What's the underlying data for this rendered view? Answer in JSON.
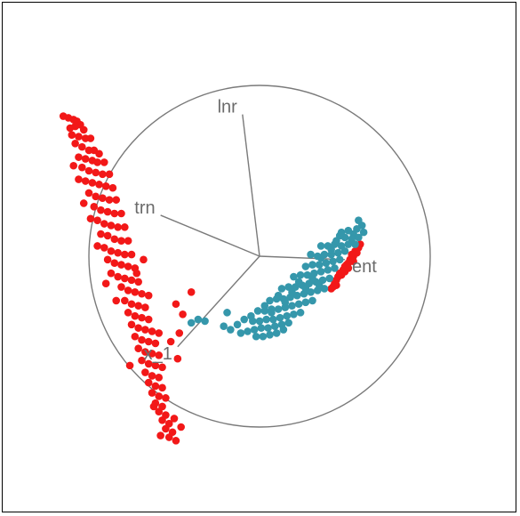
{
  "chart_data": {
    "type": "scatter",
    "projection": "tour-biplot",
    "title": "",
    "xlabel": "",
    "ylabel": "",
    "xlim": [
      -1.6,
      1.6
    ],
    "ylim": [
      -1.5,
      1.5
    ],
    "grid": false,
    "legend": "none",
    "guide_circle_radius": 1.0,
    "axes_vectors": [
      {
        "label": "lnr",
        "x": -0.1,
        "y": 0.83
      },
      {
        "label": "trn",
        "x": -0.58,
        "y": 0.24
      },
      {
        "label": "x_1",
        "x": -0.48,
        "y": -0.53
      },
      {
        "label": "ent",
        "x": 0.5,
        "y": -0.02
      }
    ],
    "series": [
      {
        "color": "#f21818",
        "points": [
          [
            -1.15,
            0.82
          ],
          [
            -1.12,
            0.81
          ],
          [
            -1.09,
            0.8
          ],
          [
            -1.07,
            0.79
          ],
          [
            -1.05,
            0.77
          ],
          [
            -1.08,
            0.76
          ],
          [
            -1.11,
            0.75
          ],
          [
            -1.03,
            0.74
          ],
          [
            -1.1,
            0.71
          ],
          [
            -1.06,
            0.7
          ],
          [
            -1.02,
            0.69
          ],
          [
            -0.99,
            0.69
          ],
          [
            -1.08,
            0.66
          ],
          [
            -1.04,
            0.64
          ],
          [
            -1.0,
            0.62
          ],
          [
            -0.97,
            0.62
          ],
          [
            -0.94,
            0.6
          ],
          [
            -1.06,
            0.58
          ],
          [
            -1.02,
            0.57
          ],
          [
            -0.98,
            0.56
          ],
          [
            -0.95,
            0.55
          ],
          [
            -0.91,
            0.55
          ],
          [
            -1.09,
            0.53
          ],
          [
            -1.04,
            0.52
          ],
          [
            -1.0,
            0.5
          ],
          [
            -0.96,
            0.49
          ],
          [
            -0.92,
            0.48
          ],
          [
            -0.88,
            0.48
          ],
          [
            -1.06,
            0.45
          ],
          [
            -1.02,
            0.44
          ],
          [
            -0.98,
            0.43
          ],
          [
            -0.94,
            0.42
          ],
          [
            -0.9,
            0.41
          ],
          [
            -0.86,
            0.4
          ],
          [
            -1.0,
            0.37
          ],
          [
            -0.96,
            0.35
          ],
          [
            -0.92,
            0.34
          ],
          [
            -0.88,
            0.33
          ],
          [
            -0.84,
            0.33
          ],
          [
            -1.03,
            0.31
          ],
          [
            -0.97,
            0.29
          ],
          [
            -0.93,
            0.27
          ],
          [
            -0.89,
            0.26
          ],
          [
            -0.85,
            0.25
          ],
          [
            -0.81,
            0.25
          ],
          [
            -0.99,
            0.22
          ],
          [
            -0.95,
            0.21
          ],
          [
            -0.91,
            0.19
          ],
          [
            -0.87,
            0.18
          ],
          [
            -0.83,
            0.17
          ],
          [
            -0.79,
            0.17
          ],
          [
            -0.93,
            0.13
          ],
          [
            -0.89,
            0.12
          ],
          [
            -0.85,
            0.1
          ],
          [
            -0.81,
            0.09
          ],
          [
            -0.77,
            0.09
          ],
          [
            -0.95,
            0.06
          ],
          [
            -0.91,
            0.05
          ],
          [
            -0.87,
            0.03
          ],
          [
            -0.83,
            0.02
          ],
          [
            -0.79,
            0.01
          ],
          [
            -0.75,
            0.01
          ],
          [
            -0.89,
            -0.02
          ],
          [
            -0.85,
            -0.04
          ],
          [
            -0.81,
            -0.05
          ],
          [
            -0.77,
            -0.06
          ],
          [
            -0.73,
            -0.07
          ],
          [
            -0.87,
            -0.1
          ],
          [
            -0.83,
            -0.12
          ],
          [
            -0.79,
            -0.13
          ],
          [
            -0.75,
            -0.14
          ],
          [
            -0.71,
            -0.15
          ],
          [
            -0.81,
            -0.18
          ],
          [
            -0.77,
            -0.2
          ],
          [
            -0.73,
            -0.21
          ],
          [
            -0.69,
            -0.22
          ],
          [
            -0.65,
            -0.23
          ],
          [
            -0.79,
            -0.26
          ],
          [
            -0.75,
            -0.28
          ],
          [
            -0.71,
            -0.29
          ],
          [
            -0.67,
            -0.3
          ],
          [
            -0.77,
            -0.33
          ],
          [
            -0.73,
            -0.35
          ],
          [
            -0.69,
            -0.36
          ],
          [
            -0.65,
            -0.37
          ],
          [
            -0.75,
            -0.4
          ],
          [
            -0.71,
            -0.42
          ],
          [
            -0.67,
            -0.43
          ],
          [
            -0.63,
            -0.44
          ],
          [
            -0.59,
            -0.45
          ],
          [
            -0.73,
            -0.47
          ],
          [
            -0.69,
            -0.49
          ],
          [
            -0.65,
            -0.5
          ],
          [
            -0.61,
            -0.51
          ],
          [
            -0.71,
            -0.54
          ],
          [
            -0.67,
            -0.56
          ],
          [
            -0.63,
            -0.57
          ],
          [
            -0.59,
            -0.58
          ],
          [
            -0.69,
            -0.61
          ],
          [
            -0.65,
            -0.63
          ],
          [
            -0.61,
            -0.64
          ],
          [
            -0.57,
            -0.65
          ],
          [
            -0.67,
            -0.68
          ],
          [
            -0.63,
            -0.7
          ],
          [
            -0.59,
            -0.71
          ],
          [
            -0.65,
            -0.74
          ],
          [
            -0.61,
            -0.76
          ],
          [
            -0.57,
            -0.77
          ],
          [
            -0.63,
            -0.8
          ],
          [
            -0.59,
            -0.82
          ],
          [
            -0.55,
            -0.83
          ],
          [
            -0.61,
            -0.86
          ],
          [
            -0.57,
            -0.88
          ],
          [
            -0.59,
            -0.91
          ],
          [
            -0.55,
            -0.93
          ],
          [
            -0.57,
            -0.96
          ],
          [
            -0.53,
            -0.98
          ],
          [
            -0.55,
            -1.01
          ],
          [
            -0.51,
            -1.03
          ],
          [
            -0.53,
            -1.06
          ],
          [
            -0.49,
            -1.08
          ],
          [
            -0.62,
            -0.88
          ],
          [
            -0.5,
            -0.95
          ],
          [
            -0.58,
            -1.05
          ],
          [
            -0.46,
            -1.0
          ],
          [
            -0.76,
            -0.64
          ],
          [
            -0.49,
            -0.28
          ],
          [
            -0.45,
            -0.34
          ],
          [
            -0.4,
            -0.21
          ],
          [
            -0.52,
            -0.5
          ],
          [
            -0.48,
            -0.6
          ],
          [
            -0.47,
            -0.45
          ],
          [
            -0.84,
            -0.26
          ],
          [
            -0.9,
            -0.16
          ],
          [
            -0.72,
            -0.1
          ],
          [
            -0.68,
            -0.02
          ]
        ]
      },
      {
        "color": "#f21818",
        "points": [
          [
            0.58,
            0.05
          ],
          [
            0.56,
            0.03
          ],
          [
            0.55,
            0.0
          ],
          [
            0.53,
            -0.02
          ],
          [
            0.52,
            -0.04
          ],
          [
            0.5,
            -0.06
          ],
          [
            0.49,
            -0.08
          ],
          [
            0.47,
            -0.1
          ],
          [
            0.46,
            -0.12
          ],
          [
            0.45,
            -0.14
          ],
          [
            0.44,
            -0.16
          ],
          [
            0.43,
            -0.18
          ],
          [
            0.54,
            0.01
          ],
          [
            0.51,
            -0.05
          ],
          [
            0.48,
            -0.11
          ],
          [
            0.57,
            0.02
          ],
          [
            0.55,
            -0.03
          ],
          [
            0.5,
            -0.09
          ],
          [
            0.45,
            -0.17
          ],
          [
            0.42,
            -0.19
          ],
          [
            0.59,
            0.07
          ],
          [
            0.52,
            -0.07
          ]
        ]
      },
      {
        "color": "#3597ab",
        "points": [
          [
            0.58,
            0.21
          ],
          [
            0.6,
            0.18
          ],
          [
            0.57,
            0.16
          ],
          [
            0.61,
            0.14
          ],
          [
            0.55,
            0.13
          ],
          [
            0.52,
            0.15
          ],
          [
            0.58,
            0.11
          ],
          [
            0.54,
            0.1
          ],
          [
            0.5,
            0.11
          ],
          [
            0.47,
            0.12
          ],
          [
            0.56,
            0.07
          ],
          [
            0.52,
            0.07
          ],
          [
            0.48,
            0.06
          ],
          [
            0.44,
            0.07
          ],
          [
            0.4,
            0.06
          ],
          [
            0.36,
            0.06
          ],
          [
            0.5,
            0.03
          ],
          [
            0.46,
            0.02
          ],
          [
            0.42,
            0.01
          ],
          [
            0.38,
            0.01
          ],
          [
            0.34,
            0.0
          ],
          [
            0.3,
            0.01
          ],
          [
            0.47,
            -0.02
          ],
          [
            0.43,
            -0.03
          ],
          [
            0.39,
            -0.04
          ],
          [
            0.35,
            -0.05
          ],
          [
            0.31,
            -0.05
          ],
          [
            0.27,
            -0.06
          ],
          [
            0.44,
            -0.07
          ],
          [
            0.4,
            -0.08
          ],
          [
            0.36,
            -0.09
          ],
          [
            0.32,
            -0.1
          ],
          [
            0.28,
            -0.11
          ],
          [
            0.24,
            -0.11
          ],
          [
            0.2,
            -0.12
          ],
          [
            0.41,
            -0.13
          ],
          [
            0.37,
            -0.14
          ],
          [
            0.33,
            -0.15
          ],
          [
            0.29,
            -0.16
          ],
          [
            0.25,
            -0.17
          ],
          [
            0.21,
            -0.18
          ],
          [
            0.17,
            -0.18
          ],
          [
            0.13,
            -0.19
          ],
          [
            0.38,
            -0.19
          ],
          [
            0.34,
            -0.2
          ],
          [
            0.3,
            -0.21
          ],
          [
            0.26,
            -0.22
          ],
          [
            0.22,
            -0.23
          ],
          [
            0.18,
            -0.24
          ],
          [
            0.14,
            -0.25
          ],
          [
            0.1,
            -0.25
          ],
          [
            0.06,
            -0.26
          ],
          [
            0.31,
            -0.26
          ],
          [
            0.27,
            -0.27
          ],
          [
            0.23,
            -0.28
          ],
          [
            0.19,
            -0.29
          ],
          [
            0.15,
            -0.3
          ],
          [
            0.11,
            -0.31
          ],
          [
            0.07,
            -0.31
          ],
          [
            0.03,
            -0.32
          ],
          [
            -0.01,
            -0.32
          ],
          [
            0.24,
            -0.33
          ],
          [
            0.2,
            -0.34
          ],
          [
            0.16,
            -0.35
          ],
          [
            0.12,
            -0.36
          ],
          [
            0.08,
            -0.37
          ],
          [
            0.04,
            -0.37
          ],
          [
            0.0,
            -0.38
          ],
          [
            -0.04,
            -0.38
          ],
          [
            0.17,
            -0.39
          ],
          [
            0.13,
            -0.4
          ],
          [
            0.09,
            -0.41
          ],
          [
            0.05,
            -0.42
          ],
          [
            0.01,
            -0.42
          ],
          [
            -0.03,
            -0.43
          ],
          [
            0.1,
            -0.45
          ],
          [
            0.06,
            -0.46
          ],
          [
            0.02,
            -0.47
          ],
          [
            -0.02,
            -0.47
          ],
          [
            0.35,
            -0.17
          ],
          [
            0.31,
            -0.13
          ],
          [
            0.27,
            -0.19
          ],
          [
            0.23,
            -0.15
          ],
          [
            0.19,
            -0.21
          ],
          [
            0.15,
            -0.27
          ],
          [
            0.11,
            -0.23
          ],
          [
            0.07,
            -0.33
          ],
          [
            0.03,
            -0.29
          ],
          [
            -0.05,
            -0.35
          ],
          [
            -0.09,
            -0.37
          ],
          [
            -0.13,
            -0.4
          ],
          [
            -0.17,
            -0.43
          ],
          [
            -0.21,
            -0.41
          ],
          [
            -0.07,
            -0.44
          ],
          [
            0.48,
            0.14
          ],
          [
            0.45,
            0.09
          ],
          [
            0.36,
            -0.01
          ],
          [
            0.42,
            0.04
          ],
          [
            -0.36,
            -0.37
          ],
          [
            -0.32,
            -0.38
          ],
          [
            -0.4,
            -0.39
          ],
          [
            -0.19,
            -0.33
          ],
          [
            -0.11,
            -0.45
          ],
          [
            0.14,
            -0.43
          ]
        ]
      }
    ]
  }
}
